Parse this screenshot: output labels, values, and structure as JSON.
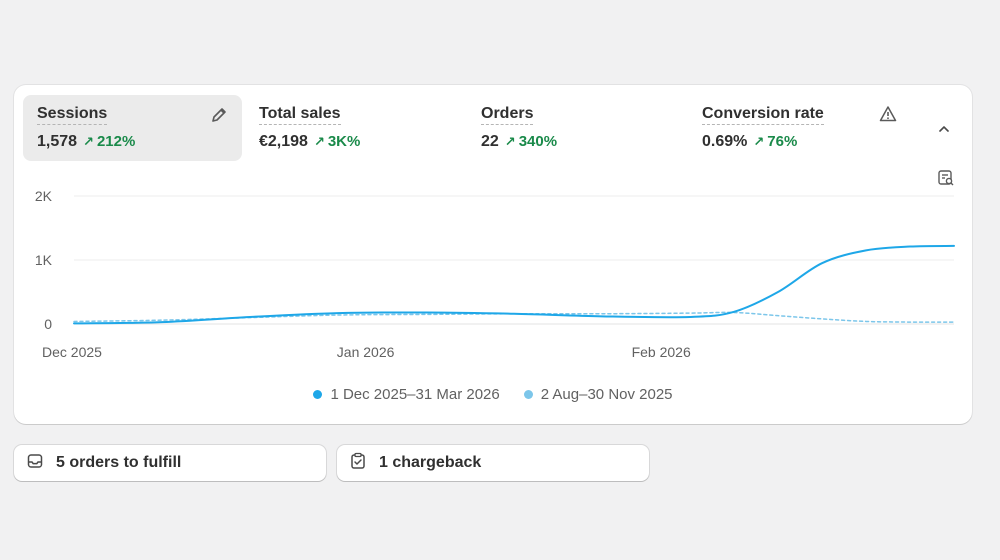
{
  "metrics": [
    {
      "label": "Sessions",
      "value": "1,578",
      "change": "212%"
    },
    {
      "label": "Total sales",
      "value": "€2,198",
      "change": "3K%"
    },
    {
      "label": "Orders",
      "value": "22",
      "change": "340%"
    },
    {
      "label": "Conversion rate",
      "value": "0.69%",
      "change": "76%"
    }
  ],
  "icons": {
    "edit": "pencil-icon",
    "warning": "warning-icon",
    "collapse": "chevron-up-icon",
    "chart_explore": "chart-search-icon",
    "orders": "inbox-icon",
    "chargeback": "clipboard-check-icon"
  },
  "colors": {
    "current_series": "#1ea7e8",
    "previous_series": "#7cc6ea",
    "positive_change": "#1a8a4a"
  },
  "chart_data": {
    "type": "line",
    "y_ticks": [
      "2K",
      "1K",
      "0"
    ],
    "x_ticks": [
      "Dec 2025",
      "Jan 2026",
      "Feb 2026"
    ],
    "ylim": [
      0,
      2000
    ],
    "grid": true,
    "legend_position": "bottom",
    "series": [
      {
        "name": "1 Dec 2025–31 Mar 2026",
        "style": "solid",
        "points": [
          [
            0,
            10
          ],
          [
            0.1,
            30
          ],
          [
            0.2,
            110
          ],
          [
            0.3,
            170
          ],
          [
            0.4,
            180
          ],
          [
            0.5,
            160
          ],
          [
            0.6,
            120
          ],
          [
            0.7,
            110
          ],
          [
            0.75,
            190
          ],
          [
            0.8,
            500
          ],
          [
            0.85,
            950
          ],
          [
            0.9,
            1150
          ],
          [
            0.95,
            1210
          ],
          [
            1.0,
            1220
          ]
        ]
      },
      {
        "name": "2 Aug–30 Nov 2025",
        "style": "dashed",
        "points": [
          [
            0,
            40
          ],
          [
            0.1,
            60
          ],
          [
            0.2,
            100
          ],
          [
            0.3,
            140
          ],
          [
            0.4,
            150
          ],
          [
            0.5,
            160
          ],
          [
            0.6,
            160
          ],
          [
            0.7,
            170
          ],
          [
            0.75,
            180
          ],
          [
            0.8,
            130
          ],
          [
            0.85,
            80
          ],
          [
            0.9,
            40
          ],
          [
            0.95,
            30
          ],
          [
            1.0,
            30
          ]
        ]
      }
    ]
  },
  "tasks": [
    {
      "label": "5 orders to fulfill"
    },
    {
      "label": "1 chargeback"
    }
  ]
}
